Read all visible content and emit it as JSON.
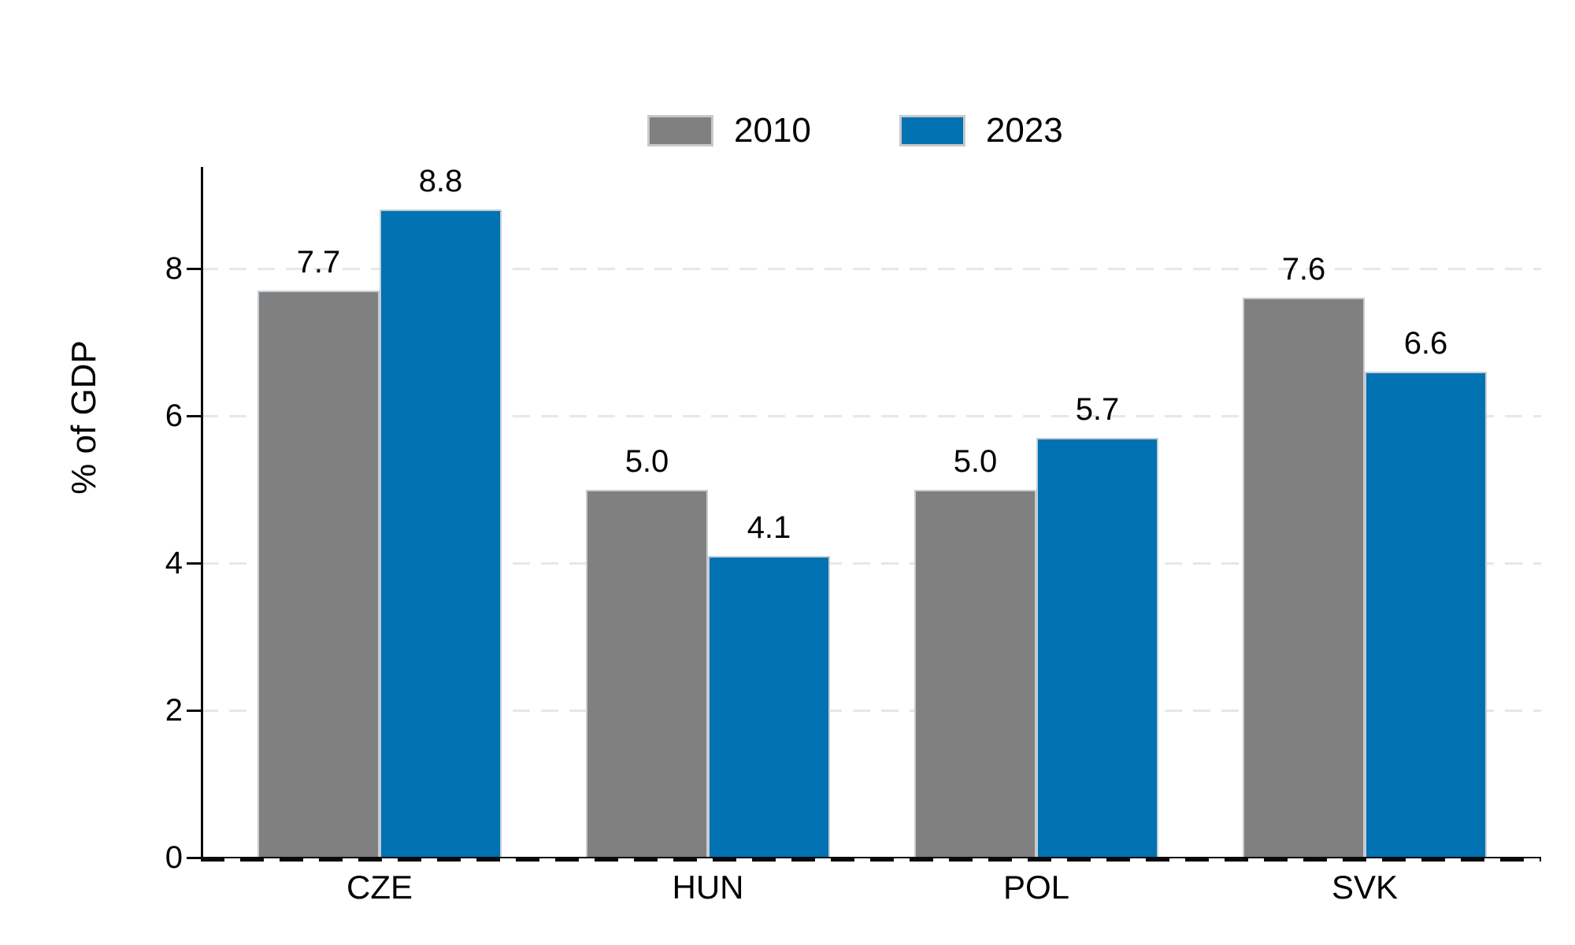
{
  "chart_data": {
    "type": "bar",
    "title": "",
    "categories": [
      "CZE",
      "HUN",
      "POL",
      "SVK"
    ],
    "series": [
      {
        "name": "2010",
        "color": "#808080",
        "values": [
          7.7,
          5.0,
          5.0,
          7.6
        ]
      },
      {
        "name": "2023",
        "color": "#0072B2",
        "values": [
          8.8,
          4.1,
          5.7,
          6.6
        ]
      }
    ],
    "value_labels": [
      [
        "7.7",
        "5.0",
        "5.0",
        "7.6"
      ],
      [
        "8.8",
        "4.1",
        "5.7",
        "6.6"
      ]
    ],
    "value_label_decimals": 1,
    "xlabel": "",
    "ylabel": "% of GDP",
    "yticks": [
      0,
      2,
      4,
      6,
      8
    ],
    "ylim": [
      0,
      9.4
    ],
    "grid": "horizontal, light-gray dashed",
    "zero_line": "dark dashed over solid axis line",
    "legend_position": "top-center",
    "bar_labels_position": "above bars"
  },
  "colors": {
    "series_2010": "#808080",
    "series_2023": "#0072B2",
    "bar_border": "#c4cdd4",
    "gridline": "#e7e7e7",
    "axis": "#0a0a0a",
    "text": "#000000",
    "background": "#ffffff",
    "legend_swatch_border": "#c9c9c9"
  }
}
